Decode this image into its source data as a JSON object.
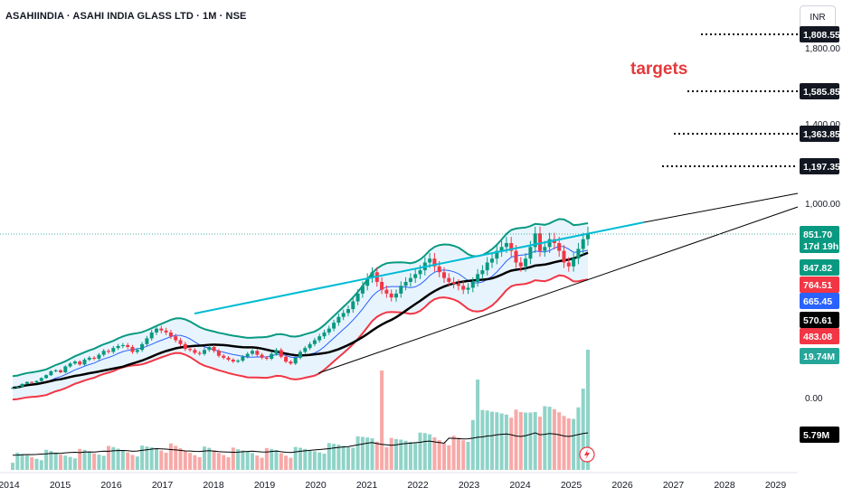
{
  "chart_data": {
    "type": "candlestick",
    "title": "ASAHIINDIA · ASAHI INDIA GLASS LTD · 1M · NSE",
    "currency": "INR",
    "annotation": "targets",
    "x_ticks": [
      "2014",
      "2015",
      "2016",
      "2017",
      "2018",
      "2019",
      "2020",
      "2021",
      "2022",
      "2023",
      "2024",
      "2025",
      "2026",
      "2027",
      "2028",
      "2029"
    ],
    "y_ticks": [
      {
        "label": "1,800.00",
        "value": 1800
      },
      {
        "label": "1,400.00",
        "value": 1400
      },
      {
        "label": "1,000.00",
        "value": 1000
      },
      {
        "label": "0.00",
        "value": 0
      }
    ],
    "target_levels": [
      {
        "label": "1,808.55",
        "value": 1808.55
      },
      {
        "label": "1,585.85",
        "value": 1585.85
      },
      {
        "label": "1,363.85",
        "value": 1363.85
      },
      {
        "label": "1,197.35",
        "value": 1197.35
      }
    ],
    "price_labels": [
      {
        "label": "851.70",
        "sub": "17d 19h",
        "name": "last-price",
        "color": "#089981"
      },
      {
        "label": "847.82",
        "name": "bb-upper",
        "color": "#089981"
      },
      {
        "label": "764.51",
        "name": "ema-short",
        "color": "#f23645"
      },
      {
        "label": "665.45",
        "name": "ma-blue",
        "color": "#2962ff"
      },
      {
        "label": "570.61",
        "name": "ma-black",
        "color": "#000000"
      },
      {
        "label": "483.08",
        "name": "bb-lower",
        "color": "#f23645"
      },
      {
        "label": "19.74M",
        "name": "volume",
        "color": "#26a69a"
      },
      {
        "label": "5.79M",
        "name": "volume-ma",
        "color": "#000000"
      }
    ],
    "price_series_close": [
      55,
      60,
      75,
      85,
      82,
      90,
      105,
      120,
      140,
      145,
      135,
      165,
      180,
      190,
      175,
      200,
      210,
      205,
      225,
      245,
      240,
      260,
      270,
      275,
      265,
      240,
      250,
      280,
      310,
      340,
      360,
      350,
      340,
      320,
      300,
      280,
      255,
      250,
      235,
      230,
      250,
      265,
      245,
      220,
      210,
      200,
      190,
      195,
      215,
      230,
      245,
      225,
      210,
      205,
      230,
      250,
      215,
      190,
      180,
      210,
      240,
      260,
      280,
      300,
      320,
      340,
      360,
      390,
      420,
      440,
      460,
      500,
      540,
      580,
      620,
      650,
      600,
      560,
      540,
      520,
      540,
      580,
      600,
      620,
      640,
      660,
      700,
      720,
      680,
      650,
      620,
      600,
      590,
      580,
      560,
      570,
      600,
      640,
      660,
      700,
      720,
      760,
      780,
      800,
      760,
      700,
      680,
      720,
      780,
      850,
      760,
      780,
      820,
      800,
      760,
      700,
      680,
      720,
      770,
      820,
      850
    ],
    "colors": {
      "up": "#089981",
      "down": "#f23645",
      "bb_fill": "#e8f4fd",
      "trend": "#00bcd4",
      "target_text": "#e5393b"
    }
  }
}
